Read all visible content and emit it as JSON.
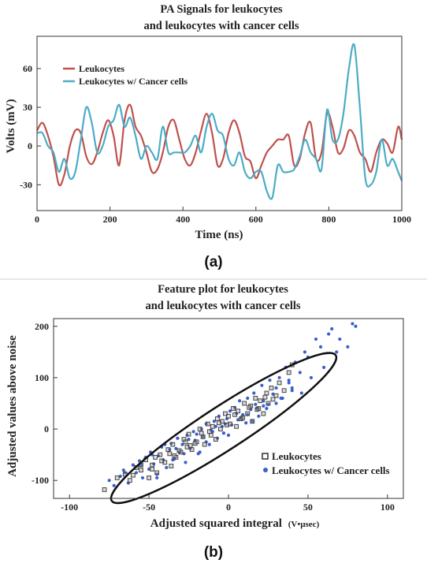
{
  "chart_data": [
    {
      "type": "line",
      "panel_label": "(a)",
      "title_lines": [
        "PA Signals for leukocytes",
        "and leukocytes with cancer cells"
      ],
      "xlabel": "Time (ns)",
      "ylabel": "Volts (mV)",
      "xlim": [
        0,
        1000
      ],
      "ylim": [
        -50,
        85
      ],
      "xticks": [
        0,
        200,
        400,
        600,
        800,
        1000
      ],
      "yticks": [
        -30,
        0,
        30,
        60
      ],
      "legend_position": "top-left",
      "grid": false,
      "series": [
        {
          "name": "Leukocytes",
          "color": "#c0504d",
          "x": [
            0,
            15,
            30,
            45,
            60,
            75,
            90,
            105,
            120,
            135,
            150,
            165,
            180,
            195,
            210,
            225,
            240,
            255,
            270,
            285,
            300,
            315,
            330,
            345,
            360,
            375,
            390,
            405,
            420,
            435,
            450,
            465,
            480,
            495,
            510,
            525,
            540,
            555,
            570,
            585,
            600,
            615,
            630,
            645,
            660,
            675,
            690,
            705,
            720,
            735,
            750,
            765,
            780,
            795,
            810,
            825,
            840,
            855,
            870,
            885,
            900,
            915,
            930,
            945,
            960,
            975,
            990,
            1000
          ],
          "y": [
            12,
            18,
            8,
            -8,
            -30,
            -22,
            0,
            12,
            10,
            -8,
            -14,
            -5,
            10,
            20,
            8,
            -15,
            20,
            32,
            15,
            8,
            -5,
            -20,
            -18,
            -5,
            15,
            20,
            5,
            -10,
            -15,
            -5,
            12,
            25,
            10,
            -15,
            -10,
            10,
            20,
            10,
            -8,
            -12,
            -25,
            -15,
            -5,
            0,
            5,
            5,
            8,
            -15,
            -10,
            10,
            18,
            -10,
            -5,
            25,
            15,
            -5,
            -2,
            12,
            8,
            -5,
            -10,
            -20,
            -5,
            5,
            2,
            -5,
            15,
            5
          ]
        },
        {
          "name": "Leukocytes w/ Cancer cells",
          "color": "#4bacc6",
          "x": [
            0,
            15,
            30,
            45,
            60,
            75,
            90,
            105,
            120,
            135,
            150,
            165,
            180,
            195,
            210,
            225,
            240,
            255,
            270,
            285,
            300,
            315,
            330,
            345,
            360,
            375,
            390,
            405,
            420,
            435,
            450,
            465,
            480,
            495,
            510,
            525,
            540,
            555,
            570,
            585,
            600,
            615,
            630,
            645,
            660,
            675,
            690,
            705,
            720,
            735,
            750,
            765,
            780,
            795,
            810,
            825,
            840,
            855,
            870,
            885,
            900,
            915,
            930,
            945,
            960,
            975,
            990,
            1000
          ],
          "y": [
            10,
            10,
            0,
            -5,
            -20,
            -10,
            -25,
            -20,
            5,
            30,
            18,
            -5,
            0,
            15,
            20,
            32,
            15,
            22,
            8,
            -10,
            0,
            -5,
            -10,
            15,
            -5,
            -5,
            -5,
            -5,
            0,
            8,
            -5,
            15,
            25,
            12,
            8,
            -10,
            -15,
            -5,
            -20,
            -25,
            -20,
            -20,
            -35,
            -40,
            -15,
            -20,
            -20,
            -18,
            -8,
            5,
            -5,
            -10,
            -18,
            28,
            5,
            5,
            25,
            60,
            78,
            30,
            -25,
            -30,
            -20,
            5,
            -15,
            -10,
            -20,
            -27
          ]
        }
      ]
    },
    {
      "type": "scatter",
      "panel_label": "(b)",
      "title_lines": [
        "Feature plot for leukocytes",
        "and leukocytes with cancer cells"
      ],
      "xlabel": "Adjusted squared integral",
      "xlabel_unit": "(V•µsec)",
      "ylabel": "Adjusted values above noise",
      "xlim": [
        -110,
        110
      ],
      "ylim": [
        -135,
        215
      ],
      "xticks": [
        -100,
        -50,
        0,
        50,
        100
      ],
      "yticks": [
        -100,
        0,
        100,
        200
      ],
      "legend_position": "bottom-right",
      "grid": false,
      "ellipse": {
        "center": [
          -3,
          2
        ],
        "rx": 84,
        "ry": 42,
        "angle_deg": -33
      },
      "series": [
        {
          "name": "Leukocytes",
          "color": "#444444",
          "marker": "open-square",
          "x": [
            -78,
            -70,
            -65,
            -62,
            -58,
            -55,
            -52,
            -50,
            -48,
            -46,
            -45,
            -43,
            -40,
            -38,
            -36,
            -35,
            -33,
            -30,
            -28,
            -26,
            -25,
            -23,
            -20,
            -18,
            -16,
            -15,
            -13,
            -12,
            -10,
            -8,
            -7,
            -5,
            -4,
            -2,
            0,
            1,
            3,
            5,
            6,
            8,
            10,
            12,
            14,
            15,
            17,
            19,
            20,
            22,
            24,
            25,
            27,
            30,
            32,
            35,
            38,
            40,
            -60,
            -42,
            -31,
            -21,
            -11,
            -1,
            9,
            18,
            28,
            -55,
            -37,
            -27,
            -17,
            -6,
            4,
            13,
            23,
            -48,
            -34,
            -24
          ],
          "y": [
            -118,
            -95,
            -88,
            -100,
            -75,
            -80,
            -60,
            -95,
            -70,
            -55,
            -85,
            -50,
            -65,
            -40,
            -72,
            -30,
            -55,
            -45,
            -20,
            -35,
            -10,
            -40,
            -25,
            0,
            -15,
            -30,
            10,
            -5,
            5,
            -20,
            20,
            0,
            15,
            30,
            25,
            10,
            40,
            5,
            35,
            20,
            50,
            30,
            45,
            15,
            60,
            40,
            55,
            30,
            70,
            50,
            80,
            65,
            90,
            75,
            110,
            125,
            -90,
            -62,
            -42,
            -28,
            -12,
            8,
            22,
            38,
            58,
            -70,
            -48,
            -25,
            -8,
            12,
            28,
            42,
            62,
            -78,
            -52,
            -32
          ]
        },
        {
          "name": "Leukocytes w/ Cancer cells",
          "color": "#3a5fcd",
          "marker": "dot",
          "x": [
            -75,
            -72,
            -68,
            -66,
            -63,
            -60,
            -58,
            -56,
            -54,
            -52,
            -50,
            -49,
            -47,
            -45,
            -44,
            -42,
            -41,
            -39,
            -37,
            -36,
            -34,
            -32,
            -31,
            -29,
            -27,
            -26,
            -24,
            -22,
            -21,
            -19,
            -17,
            -16,
            -14,
            -12,
            -11,
            -9,
            -7,
            -6,
            -4,
            -3,
            -1,
            1,
            2,
            4,
            6,
            7,
            9,
            11,
            12,
            14,
            16,
            17,
            19,
            21,
            22,
            24,
            26,
            28,
            30,
            32,
            34,
            36,
            38,
            40,
            42,
            45,
            48,
            50,
            52,
            55,
            58,
            60,
            63,
            65,
            68,
            70,
            75,
            78,
            80,
            -65,
            -55,
            -48,
            -40,
            -33,
            -25,
            -18,
            -10,
            -2,
            5,
            12,
            18,
            25,
            33,
            40,
            -45,
            -35,
            -28,
            -20,
            -14,
            -8,
            0,
            8,
            15,
            22,
            30,
            38,
            46
          ],
          "y": [
            -100,
            -110,
            -92,
            -80,
            -105,
            -70,
            -85,
            -62,
            -95,
            -55,
            -78,
            -45,
            -68,
            -88,
            -52,
            -35,
            -60,
            -75,
            -40,
            -28,
            -58,
            -18,
            -45,
            -30,
            -65,
            -12,
            -38,
            -5,
            -22,
            -48,
            0,
            -15,
            10,
            -30,
            -2,
            15,
            -18,
            25,
            5,
            -8,
            20,
            35,
            8,
            42,
            18,
            55,
            28,
            12,
            60,
            38,
            70,
            48,
            25,
            85,
            55,
            40,
            95,
            68,
            80,
            100,
            60,
            120,
            90,
            75,
            130,
            110,
            150,
            140,
            100,
            175,
            160,
            120,
            185,
            195,
            150,
            175,
            160,
            205,
            200,
            -85,
            -70,
            -50,
            -30,
            -38,
            -20,
            -45,
            -5,
            10,
            30,
            28,
            40,
            48,
            60,
            80,
            -95,
            -60,
            -48,
            -10,
            -25,
            5,
            -12,
            22,
            15,
            45,
            50,
            95,
            70
          ]
        }
      ]
    }
  ]
}
